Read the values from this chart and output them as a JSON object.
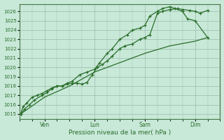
{
  "xlabel": "Pression niveau de la mer( hPa )",
  "ylim": [
    1014.5,
    1026.8
  ],
  "yticks": [
    1015,
    1016,
    1017,
    1018,
    1019,
    1020,
    1021,
    1022,
    1023,
    1024,
    1025,
    1026
  ],
  "bg_color": "#c8e8d8",
  "grid_color": "#99bbaa",
  "line_color": "#2a6e2a",
  "tick_label_color": "#2a6e2a",
  "axis_label_color": "#2a6e2a",
  "xtick_labels": [
    "Ven",
    "Lun",
    "Sam",
    "Dim"
  ],
  "xtick_positions": [
    1,
    3,
    5,
    7
  ],
  "xlim": [
    0,
    8
  ],
  "line1_x": [
    0.05,
    0.15,
    0.3,
    0.5,
    0.7,
    0.9,
    1.1,
    1.3,
    1.5,
    1.7,
    1.9,
    2.1,
    2.3,
    2.5,
    2.7,
    2.9,
    3.1,
    3.3,
    3.5,
    3.7,
    4.0,
    4.2,
    4.5,
    4.8,
    5.0,
    5.2,
    5.5,
    5.7,
    6.0,
    6.3,
    6.5,
    6.8,
    7.0,
    7.2,
    7.5
  ],
  "line1_y": [
    1015.0,
    1015.8,
    1016.2,
    1016.8,
    1017.0,
    1017.2,
    1017.5,
    1017.8,
    1018.0,
    1018.0,
    1018.2,
    1018.3,
    1018.3,
    1018.2,
    1018.4,
    1019.2,
    1020.0,
    1020.3,
    1020.7,
    1021.2,
    1022.0,
    1022.3,
    1022.5,
    1023.0,
    1023.2,
    1023.5,
    1025.8,
    1026.0,
    1026.2,
    1026.3,
    1026.2,
    1026.1,
    1026.0,
    1025.8,
    1026.1
  ],
  "line2_x": [
    0.05,
    0.2,
    0.4,
    0.6,
    0.9,
    1.1,
    1.3,
    1.5,
    1.7,
    1.9,
    2.1,
    2.4,
    2.7,
    3.0,
    3.2,
    3.5,
    3.7,
    4.0,
    4.3,
    4.5,
    4.8,
    5.0,
    5.2,
    5.5,
    5.7,
    6.0,
    6.2,
    6.5,
    6.7,
    7.0,
    7.5
  ],
  "line2_y": [
    1015.0,
    1015.5,
    1016.0,
    1016.5,
    1017.0,
    1017.3,
    1017.7,
    1018.0,
    1018.0,
    1018.3,
    1018.5,
    1019.2,
    1019.5,
    1019.8,
    1020.5,
    1021.5,
    1022.0,
    1023.0,
    1023.5,
    1024.0,
    1024.2,
    1024.5,
    1025.5,
    1026.0,
    1026.3,
    1026.5,
    1026.3,
    1026.0,
    1025.2,
    1025.0,
    1023.2
  ],
  "line3_x": [
    0.05,
    1.0,
    2.0,
    3.0,
    4.0,
    5.0,
    6.0,
    7.0,
    7.5
  ],
  "line3_y": [
    1015.0,
    1016.8,
    1018.0,
    1019.5,
    1020.5,
    1021.5,
    1022.3,
    1022.8,
    1023.2
  ]
}
